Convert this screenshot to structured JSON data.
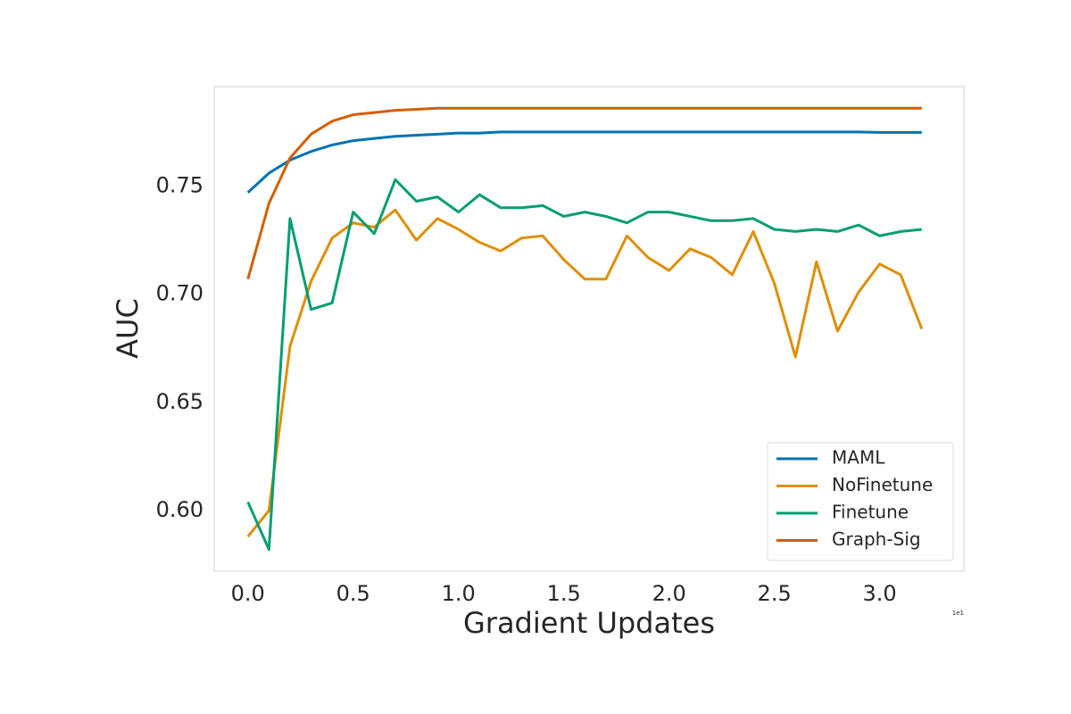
{
  "chart_data": {
    "type": "line",
    "x_label": "Gradient Updates",
    "y_label": "AUC",
    "x_offset_label": "1e1",
    "x": [
      0.0,
      0.1,
      0.2,
      0.3,
      0.4,
      0.5,
      0.6,
      0.7,
      0.8,
      0.9,
      1.0,
      1.1,
      1.2,
      1.3,
      1.4,
      1.5,
      1.6,
      1.7,
      1.8,
      1.9,
      2.0,
      2.1,
      2.2,
      2.3,
      2.4,
      2.5,
      2.6,
      2.7,
      2.8,
      2.9,
      3.0,
      3.1,
      3.2
    ],
    "series": [
      {
        "name": "MAML",
        "color": "#0173b2",
        "values": [
          0.747,
          0.756,
          0.762,
          0.766,
          0.769,
          0.771,
          0.772,
          0.773,
          0.7735,
          0.774,
          0.7745,
          0.7745,
          0.775,
          0.775,
          0.775,
          0.775,
          0.775,
          0.775,
          0.775,
          0.775,
          0.775,
          0.775,
          0.775,
          0.775,
          0.775,
          0.775,
          0.775,
          0.775,
          0.775,
          0.775,
          0.7748,
          0.7748,
          0.7748
        ]
      },
      {
        "name": "NoFinetune",
        "color": "#de8f05",
        "values": [
          0.588,
          0.6,
          0.676,
          0.706,
          0.726,
          0.733,
          0.731,
          0.739,
          0.725,
          0.735,
          0.73,
          0.724,
          0.72,
          0.726,
          0.727,
          0.716,
          0.707,
          0.707,
          0.727,
          0.717,
          0.711,
          0.721,
          0.717,
          0.709,
          0.729,
          0.705,
          0.671,
          0.715,
          0.683,
          0.701,
          0.714,
          0.709,
          0.684
        ]
      },
      {
        "name": "Finetune",
        "color": "#029e73",
        "values": [
          0.604,
          0.582,
          0.735,
          0.693,
          0.696,
          0.738,
          0.728,
          0.753,
          0.743,
          0.745,
          0.738,
          0.746,
          0.74,
          0.74,
          0.741,
          0.736,
          0.738,
          0.736,
          0.733,
          0.738,
          0.738,
          0.736,
          0.734,
          0.734,
          0.735,
          0.73,
          0.729,
          0.73,
          0.729,
          0.732,
          0.727,
          0.729,
          0.73
        ]
      },
      {
        "name": "Graph-Sig",
        "color": "#d55e00",
        "values": [
          0.707,
          0.742,
          0.763,
          0.774,
          0.78,
          0.783,
          0.784,
          0.785,
          0.7855,
          0.786,
          0.786,
          0.786,
          0.786,
          0.786,
          0.786,
          0.786,
          0.786,
          0.786,
          0.786,
          0.786,
          0.786,
          0.786,
          0.786,
          0.786,
          0.786,
          0.786,
          0.786,
          0.786,
          0.786,
          0.786,
          0.786,
          0.786,
          0.786
        ]
      }
    ],
    "xlim": [
      -0.16,
      3.4
    ],
    "ylim": [
      0.572,
      0.796
    ],
    "xticks": [
      {
        "value": 0.0,
        "label": "0.0"
      },
      0.5,
      {
        "value": 1.0,
        "label": "1.0"
      },
      1.5,
      {
        "value": 2.0,
        "label": "2.0"
      },
      2.5,
      {
        "value": 3.0,
        "label": "3.0"
      }
    ],
    "yticks": [
      {
        "value": 0.6,
        "label": "0.60"
      },
      {
        "value": 0.65,
        "label": "0.65"
      },
      {
        "value": 0.7,
        "label": "0.70"
      },
      {
        "value": 0.75,
        "label": "0.75"
      }
    ],
    "grid": false,
    "legend": "lower right"
  }
}
